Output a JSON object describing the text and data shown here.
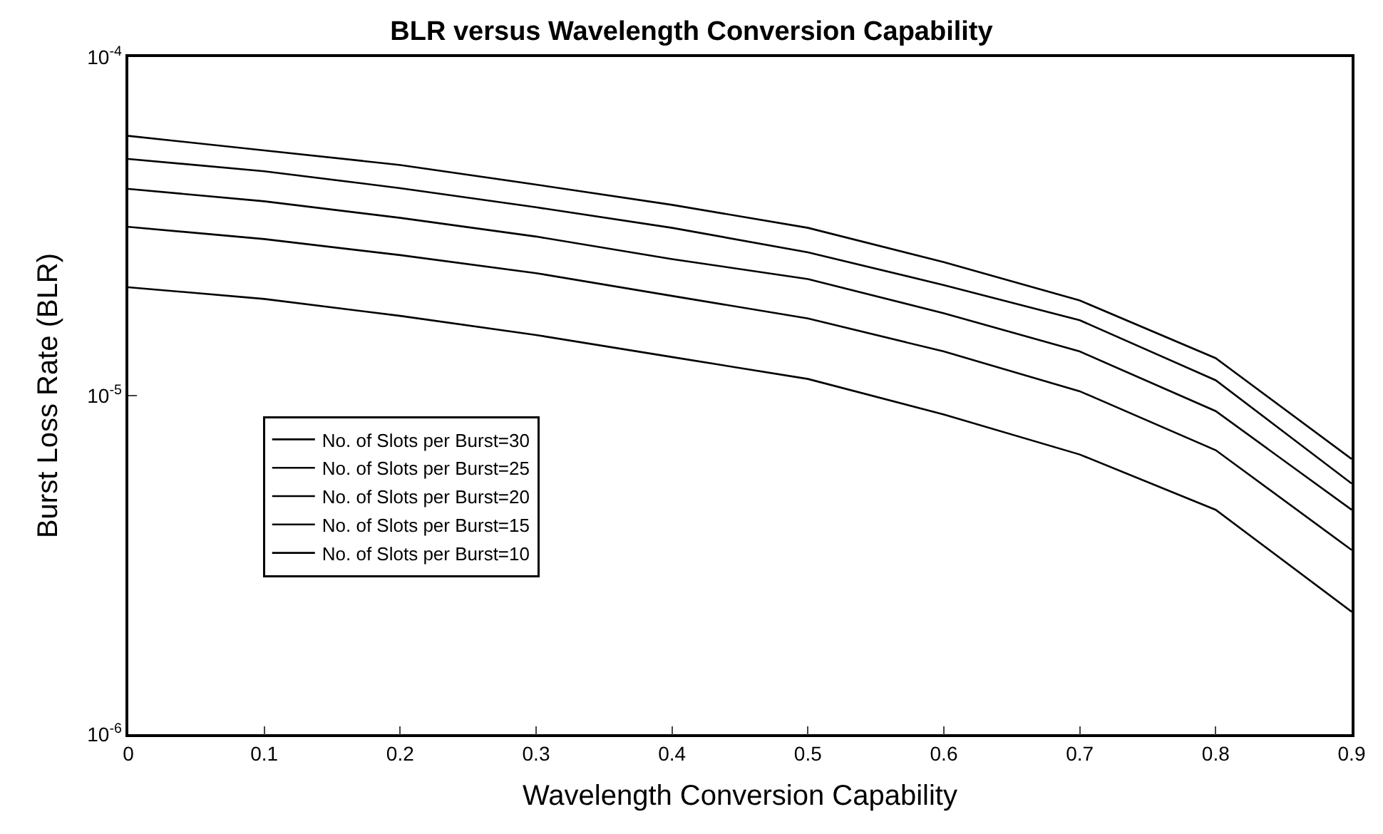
{
  "chart_data": {
    "type": "line",
    "title": "BLR versus Wavelength Conversion Capability",
    "xlabel": "Wavelength Conversion Capability",
    "ylabel": "Burst Loss Rate (BLR)",
    "x": [
      0,
      0.1,
      0.2,
      0.3,
      0.4,
      0.5,
      0.6,
      0.7,
      0.8,
      0.9
    ],
    "series": [
      {
        "name": "No. of Slots per Burst=30",
        "color": "#000000",
        "values": [
          5.85e-05,
          5.3e-05,
          4.8e-05,
          4.2e-05,
          3.66e-05,
          3.13e-05,
          2.48e-05,
          1.91e-05,
          1.29e-05,
          6.5e-06
        ]
      },
      {
        "name": "No. of Slots per Burst=25",
        "color": "#000000",
        "values": [
          5e-05,
          4.6e-05,
          4.1e-05,
          3.6e-05,
          3.13e-05,
          2.65e-05,
          2.12e-05,
          1.67e-05,
          1.11e-05,
          5.5e-06
        ]
      },
      {
        "name": "No. of Slots per Burst=20",
        "color": "#000000",
        "values": [
          4.08e-05,
          3.75e-05,
          3.35e-05,
          2.95e-05,
          2.53e-05,
          2.21e-05,
          1.75e-05,
          1.35e-05,
          9e-06,
          4.6e-06
        ]
      },
      {
        "name": "No. of Slots per Burst=15",
        "color": "#000000",
        "values": [
          3.15e-05,
          2.9e-05,
          2.6e-05,
          2.3e-05,
          1.97e-05,
          1.69e-05,
          1.35e-05,
          1.03e-05,
          6.9e-06,
          3.5e-06
        ]
      },
      {
        "name": "No. of Slots per Burst=10",
        "color": "#000000",
        "values": [
          2.09e-05,
          1.93e-05,
          1.72e-05,
          1.51e-05,
          1.3e-05,
          1.12e-05,
          8.8e-06,
          6.7e-06,
          4.6e-06,
          2.3e-06
        ]
      }
    ],
    "log": "y",
    "xlim": [
      0,
      0.9
    ],
    "xticks": [
      0,
      0.1,
      0.2,
      0.3,
      0.4,
      0.5,
      0.6,
      0.7,
      0.8,
      0.9
    ],
    "ylim": [
      1e-06,
      0.0001
    ],
    "yticks": [
      {
        "value": 1e-06,
        "label": "10$^{-6}$"
      },
      {
        "value": 1e-05,
        "label": "10$^{-5}$"
      },
      {
        "value": 0.0001,
        "label": "10$^{-4}$"
      }
    ],
    "legend": "left",
    "marker": "none",
    "line_style": "solid"
  }
}
